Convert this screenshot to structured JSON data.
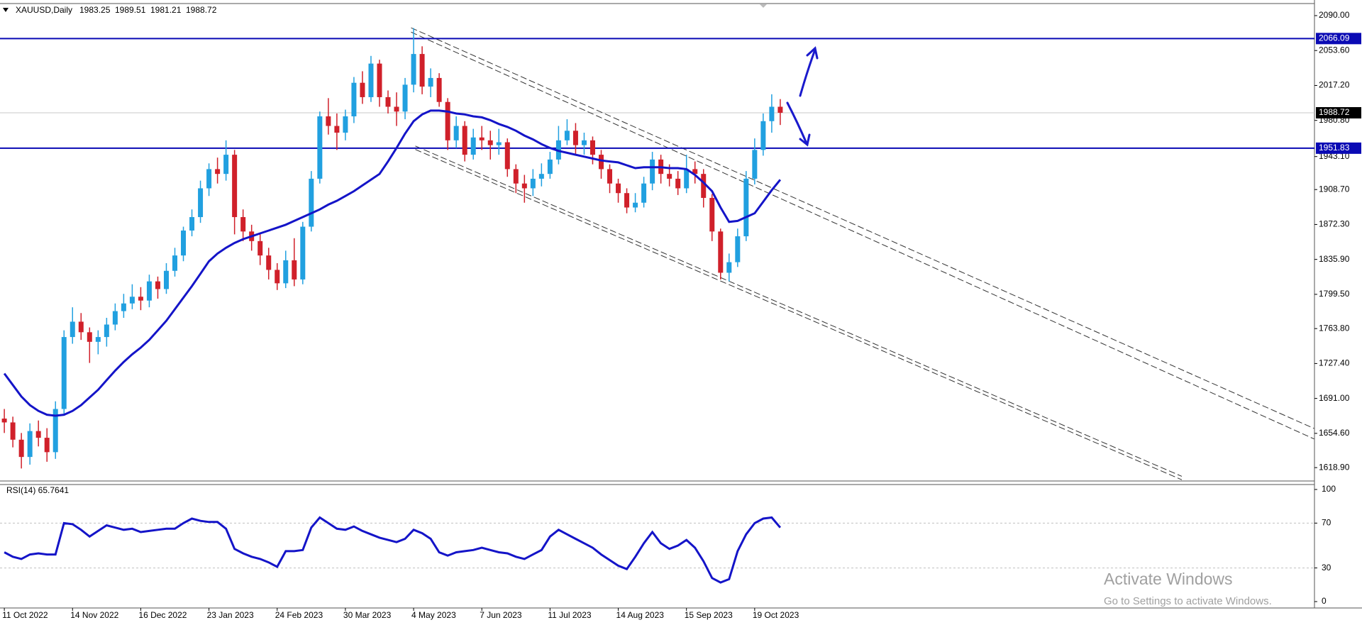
{
  "chart_data": {
    "type": "candlestick",
    "symbol": "XAUUSD,Daily",
    "ohlc": [
      1983.25,
      1989.51,
      1981.21,
      1988.72
    ],
    "x_labels": [
      "11 Oct 2022",
      "14 Nov 2022",
      "16 Dec 2022",
      "23 Jan 2023",
      "24 Feb 2023",
      "30 Mar 2023",
      "4 May 2023",
      "7 Jun 2023",
      "11 Jul 2023",
      "14 Aug 2023",
      "15 Sep 2023",
      "19 Oct 2023"
    ],
    "up_color": "#21a0e0",
    "down_color": "#d0202a",
    "ylim": [
      1604.96,
      2101.83
    ],
    "yticks": [
      {
        "value": 2090,
        "label": "2090.00"
      },
      {
        "value": 2053.6,
        "label": "2053.60"
      },
      {
        "value": 2017.2,
        "label": "2017.20"
      },
      {
        "value": 1980.8,
        "label": "1980.80"
      },
      {
        "value": 1943.1,
        "label": "1943.10"
      },
      {
        "value": 1908.7,
        "label": "1908.70"
      },
      {
        "value": 1872.3,
        "label": "1872.30"
      },
      {
        "value": 1835.9,
        "label": "1835.90"
      },
      {
        "value": 1799.5,
        "label": "1799.50"
      },
      {
        "value": 1763.8,
        "label": "1763.80"
      },
      {
        "value": 1727.4,
        "label": "1727.40"
      },
      {
        "value": 1691,
        "label": "1691.00"
      },
      {
        "value": 1654.6,
        "label": "1654.60"
      },
      {
        "value": 1618.9,
        "label": "1618.90"
      }
    ],
    "grid": false,
    "candles": [
      [
        1670,
        1680,
        1655,
        1666
      ],
      [
        1666,
        1672,
        1640,
        1648
      ],
      [
        1648,
        1655,
        1618,
        1630
      ],
      [
        1630,
        1665,
        1622,
        1657
      ],
      [
        1657,
        1668,
        1641,
        1650
      ],
      [
        1650,
        1660,
        1625,
        1635
      ],
      [
        1635,
        1688,
        1628,
        1680
      ],
      [
        1680,
        1762,
        1675,
        1755
      ],
      [
        1755,
        1786,
        1748,
        1771
      ],
      [
        1771,
        1780,
        1752,
        1760
      ],
      [
        1760,
        1765,
        1728,
        1750
      ],
      [
        1750,
        1762,
        1737,
        1755
      ],
      [
        1755,
        1775,
        1745,
        1768
      ],
      [
        1768,
        1790,
        1762,
        1782
      ],
      [
        1782,
        1800,
        1775,
        1790
      ],
      [
        1790,
        1810,
        1784,
        1797
      ],
      [
        1797,
        1807,
        1783,
        1793
      ],
      [
        1793,
        1820,
        1786,
        1813
      ],
      [
        1813,
        1818,
        1795,
        1805
      ],
      [
        1805,
        1832,
        1800,
        1824
      ],
      [
        1824,
        1848,
        1818,
        1840
      ],
      [
        1840,
        1870,
        1834,
        1866
      ],
      [
        1866,
        1888,
        1860,
        1880
      ],
      [
        1880,
        1918,
        1874,
        1910
      ],
      [
        1910,
        1936,
        1902,
        1930
      ],
      [
        1930,
        1942,
        1915,
        1925
      ],
      [
        1925,
        1960,
        1918,
        1945
      ],
      [
        1945,
        1950,
        1862,
        1880
      ],
      [
        1880,
        1888,
        1855,
        1865
      ],
      [
        1865,
        1872,
        1845,
        1855
      ],
      [
        1855,
        1862,
        1830,
        1840
      ],
      [
        1840,
        1848,
        1815,
        1825
      ],
      [
        1825,
        1832,
        1804,
        1811
      ],
      [
        1811,
        1845,
        1806,
        1835
      ],
      [
        1835,
        1858,
        1808,
        1815
      ],
      [
        1815,
        1875,
        1810,
        1870
      ],
      [
        1870,
        1928,
        1865,
        1920
      ],
      [
        1920,
        1990,
        1915,
        1985
      ],
      [
        1985,
        2004,
        1966,
        1975
      ],
      [
        1975,
        1988,
        1950,
        1968
      ],
      [
        1968,
        1992,
        1960,
        1985
      ],
      [
        1985,
        2026,
        1978,
        2020
      ],
      [
        2020,
        2032,
        1998,
        2005
      ],
      [
        2005,
        2048,
        2000,
        2040
      ],
      [
        2040,
        2044,
        1995,
        2005
      ],
      [
        2005,
        2012,
        1988,
        1995
      ],
      [
        1995,
        2010,
        1975,
        1990
      ],
      [
        1990,
        2025,
        1982,
        2018
      ],
      [
        2018,
        2077,
        2010,
        2050
      ],
      [
        2050,
        2058,
        2008,
        2016
      ],
      [
        2016,
        2035,
        2005,
        2025
      ],
      [
        2025,
        2030,
        1995,
        2000
      ],
      [
        2000,
        2004,
        1950,
        1960
      ],
      [
        1960,
        1985,
        1952,
        1975
      ],
      [
        1975,
        1980,
        1938,
        1945
      ],
      [
        1945,
        1972,
        1940,
        1963
      ],
      [
        1963,
        1975,
        1950,
        1960
      ],
      [
        1960,
        1970,
        1940,
        1955
      ],
      [
        1955,
        1972,
        1945,
        1958
      ],
      [
        1958,
        1962,
        1922,
        1930
      ],
      [
        1930,
        1935,
        1905,
        1915
      ],
      [
        1915,
        1924,
        1895,
        1910
      ],
      [
        1910,
        1930,
        1902,
        1920
      ],
      [
        1920,
        1936,
        1912,
        1925
      ],
      [
        1925,
        1948,
        1920,
        1940
      ],
      [
        1940,
        1975,
        1935,
        1960
      ],
      [
        1960,
        1982,
        1955,
        1970
      ],
      [
        1970,
        1978,
        1946,
        1955
      ],
      [
        1955,
        1968,
        1945,
        1960
      ],
      [
        1960,
        1964,
        1935,
        1945
      ],
      [
        1945,
        1950,
        1920,
        1930
      ],
      [
        1930,
        1935,
        1905,
        1915
      ],
      [
        1915,
        1920,
        1895,
        1905
      ],
      [
        1905,
        1910,
        1884,
        1890
      ],
      [
        1890,
        1905,
        1885,
        1895
      ],
      [
        1895,
        1922,
        1890,
        1915
      ],
      [
        1915,
        1948,
        1908,
        1940
      ],
      [
        1940,
        1945,
        1915,
        1925
      ],
      [
        1925,
        1935,
        1912,
        1920
      ],
      [
        1920,
        1928,
        1903,
        1910
      ],
      [
        1910,
        1945,
        1905,
        1930
      ],
      [
        1930,
        1938,
        1915,
        1925
      ],
      [
        1925,
        1930,
        1890,
        1900
      ],
      [
        1900,
        1904,
        1855,
        1865
      ],
      [
        1865,
        1868,
        1815,
        1822
      ],
      [
        1822,
        1842,
        1813,
        1833
      ],
      [
        1833,
        1868,
        1828,
        1860
      ],
      [
        1860,
        1928,
        1855,
        1920
      ],
      [
        1920,
        1962,
        1914,
        1950
      ],
      [
        1950,
        1988,
        1944,
        1980
      ],
      [
        1980,
        2008,
        1968,
        1995
      ],
      [
        1995,
        2003,
        1976,
        1988.72
      ]
    ],
    "moving_average": {
      "color": "#1414c8",
      "values": [
        1717,
        1705,
        1693,
        1684,
        1678,
        1674,
        1673,
        1674,
        1678,
        1684,
        1692,
        1700,
        1710,
        1720,
        1729,
        1737,
        1744,
        1752,
        1762,
        1772,
        1784,
        1796,
        1808,
        1821,
        1834,
        1842,
        1848,
        1853,
        1857,
        1860,
        1863,
        1866,
        1869,
        1872,
        1876,
        1880,
        1884,
        1888,
        1893,
        1897,
        1902,
        1907,
        1913,
        1919,
        1925,
        1938,
        1952,
        1967,
        1980,
        1987,
        1991,
        1991,
        1990,
        1988,
        1987,
        1985,
        1984,
        1981,
        1977,
        1974,
        1970,
        1965,
        1961,
        1956,
        1952,
        1949,
        1947,
        1945,
        1943,
        1941,
        1939,
        1938,
        1937,
        1934,
        1931,
        1932,
        1932,
        1932,
        1931,
        1931,
        1930,
        1924,
        1916,
        1907,
        1890,
        1875,
        1876,
        1880,
        1884,
        1896,
        1908,
        1919
      ]
    },
    "levels": [
      {
        "value": 2066.09,
        "color": "#0a0ab4"
      },
      {
        "value": 1951.83,
        "color": "#0a0ab4"
      }
    ],
    "current_price": {
      "value": 1988.72,
      "color": "#c8c8c8"
    },
    "trendlines": [
      [
        2077.3,
        1659.7
      ],
      [
        2072.8,
        1648.8
      ],
      [
        1950.5,
        1606.2
      ],
      [
        1954.1,
        1609.8
      ]
    ],
    "rsi": {
      "type": "line",
      "title": "RSI(14) 65.7641",
      "color": "#1414c8",
      "ylim": [
        -5.7,
        104.4
      ],
      "yticks": [
        100,
        70,
        30,
        0
      ],
      "values": [
        44,
        40,
        38,
        42,
        43,
        42,
        42,
        70,
        69,
        64,
        58,
        63,
        68,
        66,
        64,
        65,
        62,
        63,
        64,
        65,
        65,
        70,
        74,
        72,
        71,
        71,
        65,
        47,
        43,
        40,
        38,
        35,
        31,
        45,
        45,
        46,
        66,
        75,
        70,
        65,
        64,
        67,
        63,
        60,
        57,
        55,
        53,
        56,
        64,
        61,
        56,
        44,
        41,
        44,
        45,
        46,
        48,
        46,
        44,
        43,
        40,
        38,
        42,
        46,
        58,
        64,
        60,
        56,
        52,
        48,
        42,
        37,
        32,
        29,
        40,
        52,
        62,
        52,
        47,
        50,
        55,
        48,
        36,
        21,
        17,
        20,
        45,
        60,
        70,
        74,
        75,
        66
      ]
    },
    "watermark": {
      "title": "Activate Windows",
      "subtitle": "Go to Settings to activate Windows."
    }
  }
}
